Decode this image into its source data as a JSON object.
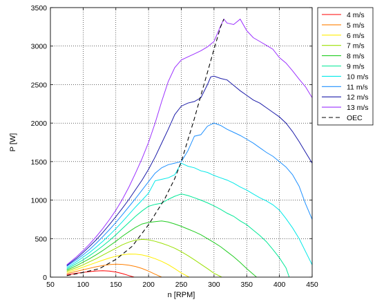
{
  "chart_data": {
    "type": "line",
    "xlabel": "n [RPM]",
    "ylabel": "P [W]",
    "xlim": [
      50,
      450
    ],
    "ylim": [
      0,
      3500
    ],
    "xticks": [
      "50",
      "100",
      "150",
      "200",
      "250",
      "300",
      "350",
      "400",
      "450"
    ],
    "yticks": [
      "0",
      "500",
      "1000",
      "1500",
      "2000",
      "2500",
      "3000",
      "3500"
    ],
    "grid": "on (dotted)",
    "legend_position": "outside right",
    "series": [
      {
        "name": "4 m/s",
        "color": "#ff0000",
        "style": "solid",
        "x": [
          75,
          90,
          100,
          110,
          120,
          130,
          140,
          150,
          160,
          170,
          178
        ],
        "y": [
          30,
          50,
          62,
          72,
          80,
          83,
          78,
          66,
          46,
          20,
          0
        ]
      },
      {
        "name": "5 m/s",
        "color": "#ff7f00",
        "style": "solid",
        "x": [
          75,
          90,
          100,
          110,
          120,
          130,
          140,
          150,
          160,
          170,
          180,
          190,
          200,
          210,
          220
        ],
        "y": [
          45,
          75,
          95,
          115,
          135,
          150,
          162,
          168,
          165,
          155,
          138,
          112,
          78,
          38,
          0
        ]
      },
      {
        "name": "6 m/s",
        "color": "#ffee00",
        "style": "solid",
        "x": [
          75,
          90,
          100,
          110,
          120,
          130,
          140,
          150,
          160,
          170,
          180,
          190,
          200,
          210,
          220,
          230,
          240,
          250,
          262
        ],
        "y": [
          60,
          100,
          130,
          160,
          190,
          220,
          248,
          272,
          290,
          300,
          298,
          288,
          268,
          240,
          205,
          162,
          110,
          55,
          0
        ]
      },
      {
        "name": "7 m/s",
        "color": "#99e000",
        "style": "solid",
        "x": [
          75,
          90,
          100,
          110,
          120,
          130,
          140,
          150,
          160,
          170,
          180,
          190,
          200,
          210,
          220,
          230,
          240,
          250,
          260,
          270,
          280,
          290,
          300,
          312
        ],
        "y": [
          75,
          125,
          160,
          200,
          240,
          285,
          330,
          375,
          420,
          455,
          480,
          490,
          485,
          465,
          440,
          410,
          375,
          330,
          280,
          225,
          168,
          110,
          50,
          0
        ]
      },
      {
        "name": "8 m/s",
        "color": "#22cc22",
        "style": "solid",
        "x": [
          75,
          90,
          100,
          110,
          120,
          130,
          140,
          150,
          160,
          170,
          180,
          190,
          200,
          210,
          220,
          230,
          240,
          250,
          260,
          270,
          280,
          290,
          300,
          310,
          320,
          330,
          340,
          350,
          365
        ],
        "y": [
          90,
          150,
          195,
          240,
          290,
          345,
          405,
          465,
          530,
          590,
          645,
          690,
          710,
          720,
          730,
          715,
          690,
          660,
          625,
          590,
          550,
          500,
          450,
          395,
          330,
          265,
          190,
          110,
          0
        ]
      },
      {
        "name": "9 m/s",
        "color": "#00e896",
        "style": "solid",
        "x": [
          75,
          90,
          100,
          110,
          120,
          130,
          140,
          150,
          160,
          170,
          180,
          190,
          200,
          210,
          220,
          230,
          240,
          250,
          260,
          270,
          280,
          290,
          300,
          310,
          320,
          330,
          340,
          350,
          360,
          370,
          380,
          390,
          400,
          410,
          415
        ],
        "y": [
          105,
          175,
          225,
          280,
          340,
          405,
          475,
          550,
          630,
          710,
          790,
          860,
          920,
          945,
          960,
          1010,
          1050,
          1080,
          1060,
          1030,
          1000,
          965,
          925,
          880,
          830,
          790,
          730,
          680,
          610,
          540,
          460,
          360,
          250,
          120,
          0
        ]
      },
      {
        "name": "10 m/s",
        "color": "#00e8e8",
        "style": "solid",
        "x": [
          75,
          90,
          100,
          110,
          120,
          130,
          140,
          150,
          160,
          170,
          180,
          190,
          200,
          210,
          220,
          230,
          240,
          250,
          260,
          270,
          280,
          290,
          300,
          310,
          320,
          330,
          340,
          350,
          360,
          370,
          380,
          390,
          400,
          410,
          420,
          430,
          440,
          450
        ],
        "y": [
          120,
          200,
          260,
          320,
          390,
          465,
          545,
          630,
          720,
          815,
          910,
          1000,
          1090,
          1250,
          1270,
          1290,
          1330,
          1480,
          1440,
          1420,
          1380,
          1360,
          1320,
          1290,
          1260,
          1220,
          1170,
          1130,
          1080,
          1030,
          990,
          940,
          870,
          760,
          640,
          500,
          330,
          160
        ]
      },
      {
        "name": "11 m/s",
        "color": "#1e90ff",
        "style": "solid",
        "x": [
          75,
          90,
          100,
          110,
          120,
          130,
          140,
          150,
          160,
          170,
          180,
          190,
          200,
          210,
          220,
          230,
          240,
          250,
          260,
          270,
          280,
          290,
          300,
          310,
          320,
          330,
          340,
          350,
          360,
          370,
          380,
          390,
          400,
          410,
          420,
          430,
          440,
          450
        ],
        "y": [
          140,
          225,
          290,
          360,
          440,
          525,
          615,
          710,
          810,
          915,
          1020,
          1130,
          1240,
          1350,
          1420,
          1460,
          1480,
          1500,
          1640,
          1830,
          1850,
          1960,
          2000,
          1970,
          1920,
          1880,
          1840,
          1790,
          1740,
          1680,
          1620,
          1570,
          1500,
          1430,
          1330,
          1180,
          950,
          750
        ]
      },
      {
        "name": "12 m/s",
        "color": "#1a1aa8",
        "style": "solid",
        "x": [
          75,
          90,
          100,
          110,
          120,
          130,
          140,
          150,
          160,
          170,
          180,
          190,
          200,
          210,
          220,
          230,
          240,
          250,
          260,
          270,
          280,
          290,
          295,
          300,
          310,
          320,
          330,
          340,
          350,
          360,
          370,
          380,
          390,
          400,
          410,
          420,
          430,
          440,
          450
        ],
        "y": [
          150,
          245,
          320,
          400,
          485,
          580,
          680,
          785,
          895,
          1010,
          1135,
          1260,
          1400,
          1560,
          1740,
          1920,
          2110,
          2220,
          2260,
          2280,
          2330,
          2500,
          2600,
          2610,
          2580,
          2560,
          2490,
          2420,
          2360,
          2300,
          2260,
          2200,
          2140,
          2080,
          2000,
          1890,
          1760,
          1620,
          1480
        ]
      },
      {
        "name": "13 m/s",
        "color": "#9b30ff",
        "style": "solid",
        "x": [
          75,
          90,
          100,
          110,
          120,
          130,
          140,
          150,
          160,
          170,
          180,
          190,
          200,
          210,
          220,
          230,
          240,
          250,
          260,
          270,
          280,
          290,
          300,
          310,
          315,
          320,
          330,
          340,
          350,
          360,
          370,
          380,
          390,
          400,
          410,
          420,
          430,
          440,
          450
        ],
        "y": [
          160,
          265,
          345,
          430,
          525,
          630,
          745,
          870,
          1010,
          1170,
          1350,
          1540,
          1750,
          2000,
          2280,
          2540,
          2720,
          2820,
          2860,
          2900,
          2940,
          2990,
          3060,
          3260,
          3350,
          3300,
          3280,
          3350,
          3200,
          3110,
          3060,
          3010,
          2960,
          2850,
          2780,
          2680,
          2570,
          2470,
          2330
        ]
      },
      {
        "name": "OEC",
        "color": "#000000",
        "style": "dashed",
        "x": [
          75,
          100,
          125,
          150,
          175,
          200,
          225,
          240,
          250,
          260,
          270,
          280,
          290,
          300,
          310,
          315
        ],
        "y": [
          20,
          60,
          110,
          230,
          400,
          680,
          1020,
          1280,
          1500,
          1780,
          2060,
          2360,
          2660,
          2960,
          3250,
          3350
        ]
      }
    ]
  }
}
